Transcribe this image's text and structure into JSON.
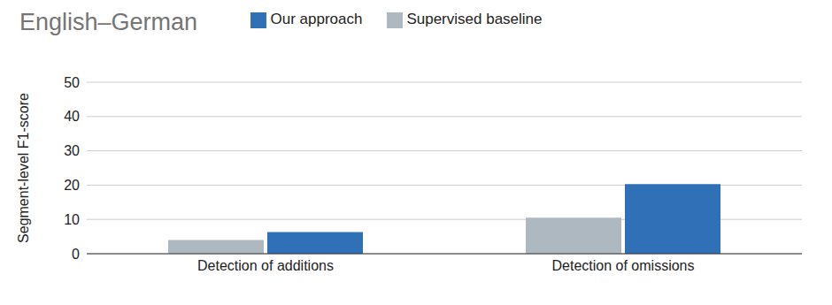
{
  "chart_data": {
    "type": "bar",
    "title": "English–German",
    "y_label": "Segment-level F1-score",
    "categories": [
      "Detection of additions",
      "Detection of omissions"
    ],
    "series": [
      {
        "name": "Supervised baseline",
        "color": "#adb8c0",
        "values": [
          4,
          10.5
        ]
      },
      {
        "name": "Our approach",
        "color": "#3070b7",
        "values": [
          6.3,
          20.3
        ]
      }
    ],
    "ylim": [
      0,
      50
    ],
    "yticks": [
      0,
      10,
      20,
      30,
      40,
      50
    ],
    "grid": true,
    "legend": "top"
  }
}
